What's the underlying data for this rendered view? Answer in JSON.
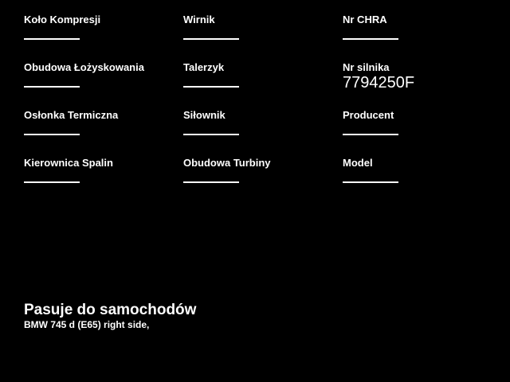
{
  "page": {
    "background_color": "#000000",
    "text_color": "#ffffff"
  },
  "spec_form": {
    "columns": [
      {
        "fields": [
          {
            "label": "Koło Kompresji",
            "value": ""
          },
          {
            "label": "Obudowa Łożyskowania",
            "value": ""
          },
          {
            "label": "Osłonka Termiczna",
            "value": ""
          },
          {
            "label": "Kierownica Spalin",
            "value": ""
          }
        ]
      },
      {
        "fields": [
          {
            "label": "Wirnik",
            "value": ""
          },
          {
            "label": "Talerzyk",
            "value": ""
          },
          {
            "label": "Siłownik",
            "value": ""
          },
          {
            "label": "Obudowa Turbiny",
            "value": ""
          }
        ]
      },
      {
        "fields": [
          {
            "label": "Nr CHRA",
            "value": ""
          },
          {
            "label": "Nr silnika",
            "value": "7794250F"
          },
          {
            "label": "Producent",
            "value": ""
          },
          {
            "label": "Model",
            "value": ""
          }
        ]
      }
    ]
  },
  "compatibility": {
    "heading": "Pasuje do samochodów",
    "items": [
      "BMW 745 d (E65) right side,"
    ]
  }
}
